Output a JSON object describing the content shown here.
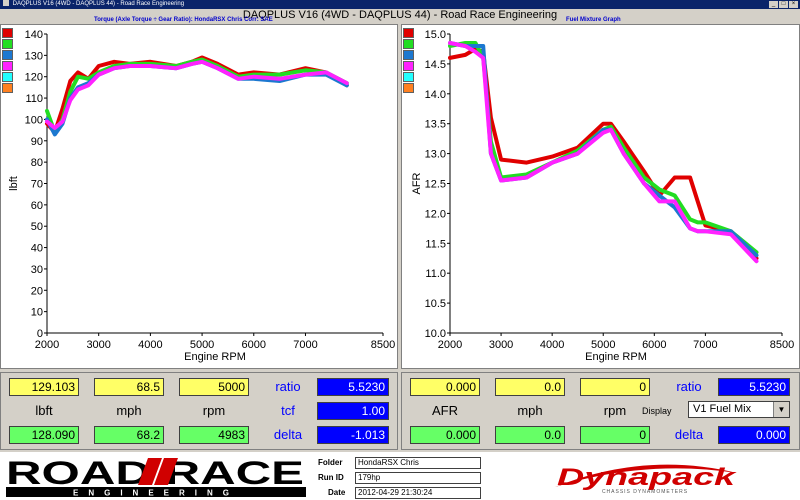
{
  "window": {
    "title": "DAQPLUS V16 (4WD - DAQPLUS 44) - Road Race Engineering",
    "min_label": "_",
    "max_label": "□",
    "close_label": "×"
  },
  "chart_title": "DAQPLUS V16 (4WD - DAQPLUS 44) - Road Race Engineering",
  "left_subtitle": "Torque (Axle Torque ÷ Gear Ratio): HondaRSX Chris       Corr: SAE",
  "right_subtitle": "Fuel Mixture Graph",
  "colors": {
    "red": "#e00000",
    "green": "#22dd22",
    "blue": "#1c78d0",
    "magenta": "#ff22ff",
    "cyan": "#22ffff",
    "orange": "#ff8020"
  },
  "chart_data": [
    {
      "type": "line",
      "name": "torque",
      "xlabel": "Engine RPM",
      "ylabel": "lbft",
      "xlim": [
        2000,
        8500
      ],
      "ylim": [
        0,
        140
      ],
      "xticks": [
        2000,
        3000,
        4000,
        5000,
        6000,
        7000,
        8500
      ],
      "yticks": [
        0,
        10,
        20,
        30,
        40,
        50,
        60,
        70,
        80,
        90,
        100,
        110,
        120,
        130,
        140
      ],
      "grid": false,
      "series": [
        {
          "color": "#e00000",
          "x": [
            2000,
            2150,
            2300,
            2450,
            2600,
            2800,
            3000,
            3300,
            3600,
            4000,
            4500,
            4800,
            5000,
            5300,
            5700,
            6000,
            6500,
            7000,
            7400,
            7800
          ],
          "y": [
            98,
            94,
            105,
            118,
            122,
            119,
            125,
            127,
            126,
            127,
            125,
            127,
            129,
            126,
            121,
            122,
            121,
            124,
            122,
            116
          ]
        },
        {
          "color": "#22dd22",
          "x": [
            2000,
            2150,
            2300,
            2450,
            2600,
            2800,
            3000,
            3300,
            3600,
            4000,
            4500,
            4800,
            5000,
            5300,
            5700,
            6000,
            6500,
            7000,
            7400,
            7800
          ],
          "y": [
            104,
            94,
            100,
            113,
            120,
            119,
            122,
            125,
            126,
            126,
            125,
            127,
            128,
            125,
            120,
            121,
            121,
            123,
            122,
            117
          ]
        },
        {
          "color": "#1c78d0",
          "x": [
            2000,
            2150,
            2300,
            2450,
            2600,
            2800,
            3000,
            3300,
            3600,
            4000,
            4500,
            4800,
            5000,
            5300,
            5700,
            6000,
            6500,
            7000,
            7400,
            7800
          ],
          "y": [
            100,
            93,
            98,
            110,
            115,
            117,
            121,
            124,
            125,
            125,
            124,
            126,
            127,
            124,
            119,
            119,
            118,
            121,
            121,
            116
          ]
        },
        {
          "color": "#ff22ff",
          "x": [
            2000,
            2150,
            2300,
            2450,
            2600,
            2800,
            3000,
            3300,
            3600,
            4000,
            4500,
            4800,
            5000,
            5300,
            5700,
            6000,
            6500,
            7000,
            7400,
            7800
          ],
          "y": [
            99,
            96,
            99,
            109,
            114,
            116,
            121,
            124,
            125,
            125,
            124,
            126,
            127,
            124,
            119,
            120,
            119,
            121,
            122,
            117
          ]
        }
      ]
    },
    {
      "type": "line",
      "name": "afr",
      "xlabel": "Engine RPM",
      "ylabel": "AFR",
      "xlim": [
        2000,
        8500
      ],
      "ylim": [
        10.0,
        15.0
      ],
      "xticks": [
        2000,
        3000,
        4000,
        5000,
        6000,
        7000,
        8500
      ],
      "yticks": [
        10.0,
        10.5,
        11.0,
        11.5,
        12.0,
        12.5,
        13.0,
        13.5,
        14.0,
        14.5,
        15.0
      ],
      "grid": false,
      "series": [
        {
          "color": "#e00000",
          "x": [
            2000,
            2300,
            2500,
            2650,
            2800,
            3000,
            3500,
            4000,
            4500,
            5000,
            5150,
            5400,
            5800,
            6100,
            6400,
            6700,
            6850,
            7000,
            7500,
            8000
          ],
          "y": [
            14.6,
            14.65,
            14.75,
            14.7,
            13.6,
            12.9,
            12.85,
            12.95,
            13.1,
            13.5,
            13.5,
            13.2,
            12.7,
            12.3,
            12.6,
            12.6,
            12.2,
            11.8,
            11.7,
            11.25
          ]
        },
        {
          "color": "#22dd22",
          "x": [
            2000,
            2300,
            2500,
            2650,
            2800,
            3000,
            3500,
            4000,
            4500,
            5000,
            5150,
            5400,
            5800,
            6100,
            6400,
            6700,
            6850,
            7000,
            7500,
            8000
          ],
          "y": [
            14.8,
            14.85,
            14.85,
            14.6,
            13.2,
            12.6,
            12.65,
            12.85,
            13.05,
            13.4,
            13.45,
            13.1,
            12.6,
            12.4,
            12.3,
            11.9,
            11.85,
            11.85,
            11.7,
            11.35
          ]
        },
        {
          "color": "#1c78d0",
          "x": [
            2000,
            2300,
            2500,
            2650,
            2800,
            3000,
            3500,
            4000,
            4500,
            5000,
            5150,
            5400,
            5800,
            6100,
            6400,
            6700,
            6850,
            7000,
            7500,
            8000
          ],
          "y": [
            14.85,
            14.8,
            14.8,
            14.8,
            13.0,
            12.55,
            12.6,
            12.85,
            13.0,
            13.4,
            13.4,
            13.0,
            12.5,
            12.3,
            12.1,
            11.75,
            11.7,
            11.7,
            11.7,
            11.3
          ]
        },
        {
          "color": "#ff22ff",
          "x": [
            2000,
            2300,
            2500,
            2650,
            2800,
            3000,
            3500,
            4000,
            4500,
            5000,
            5150,
            5400,
            5800,
            6100,
            6400,
            6700,
            6850,
            7000,
            7500,
            8000
          ],
          "y": [
            14.85,
            14.8,
            14.7,
            14.6,
            13.0,
            12.55,
            12.6,
            12.85,
            13.0,
            13.35,
            13.4,
            13.0,
            12.5,
            12.2,
            12.2,
            11.75,
            11.7,
            11.7,
            11.65,
            11.2
          ]
        }
      ]
    }
  ],
  "left_readout": {
    "top_values": [
      "129.103",
      "68.5",
      "5000"
    ],
    "units": [
      "lbft",
      "mph",
      "rpm"
    ],
    "bottom_values": [
      "128.090",
      "68.2",
      "4983"
    ],
    "labels": [
      "ratio",
      "tcf",
      "delta"
    ],
    "blue_values": [
      "5.5230",
      "1.00",
      "-1.013"
    ]
  },
  "right_readout": {
    "top_values": [
      "0.000",
      "0.0",
      "0"
    ],
    "units": [
      "AFR",
      "mph",
      "rpm"
    ],
    "bottom_values": [
      "0.000",
      "0.0",
      "0"
    ],
    "ratio_label": "ratio",
    "ratio_value": "5.5230",
    "display_label": "Display",
    "display_value": "V1 Fuel Mix",
    "delta_label": "delta",
    "delta_value": "0.000"
  },
  "footer": {
    "logo_top": "ROAD RACE",
    "logo_bottom": "ENGINEERING",
    "folder_label": "Folder",
    "folder_value": "HondaRSX Chris",
    "runid_label": "Run ID",
    "runid_value": "179hp",
    "date_label": "Date",
    "date_value": "2012-04-29 21:30:24",
    "dyna_logo": "Dynapack",
    "dyna_sub": "CHASSIS DYNAMOMETERS"
  }
}
